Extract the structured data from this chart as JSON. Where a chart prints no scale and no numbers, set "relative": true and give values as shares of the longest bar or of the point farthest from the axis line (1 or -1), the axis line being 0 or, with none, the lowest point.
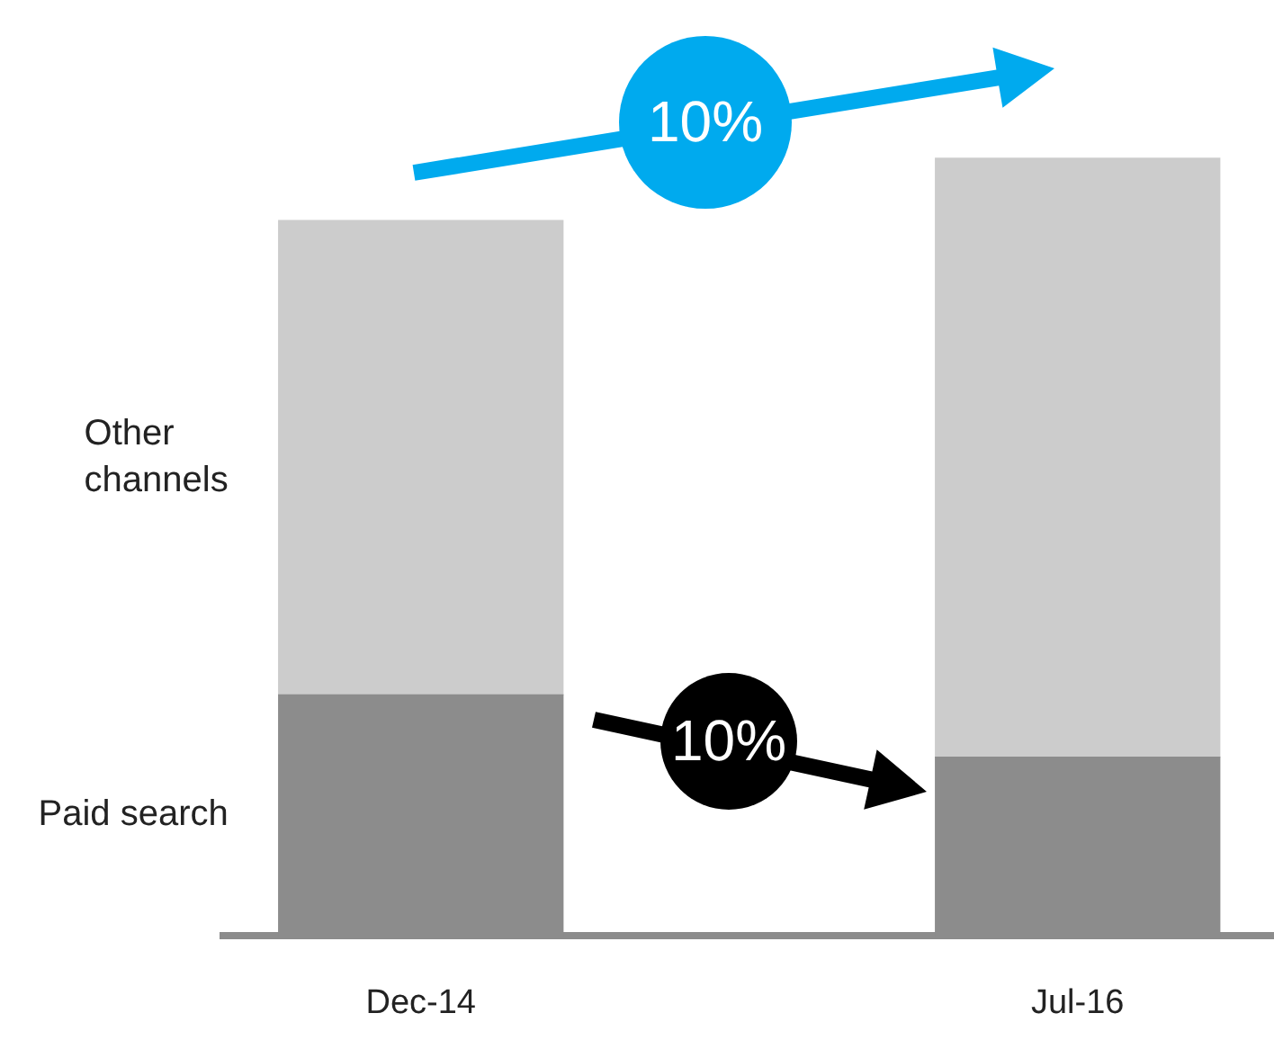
{
  "chart_data": {
    "type": "bar",
    "stacked": true,
    "relative": true,
    "categories": [
      "Dec-14",
      "Jul-16"
    ],
    "series": [
      {
        "name": "Paid search",
        "color": "#8c8c8c",
        "values": [
          0.31,
          0.23
        ]
      },
      {
        "name": "Other channels",
        "color": "#cccccc",
        "values": [
          0.61,
          0.77
        ]
      }
    ],
    "annotations": [
      "10%",
      "10%"
    ]
  }
}
